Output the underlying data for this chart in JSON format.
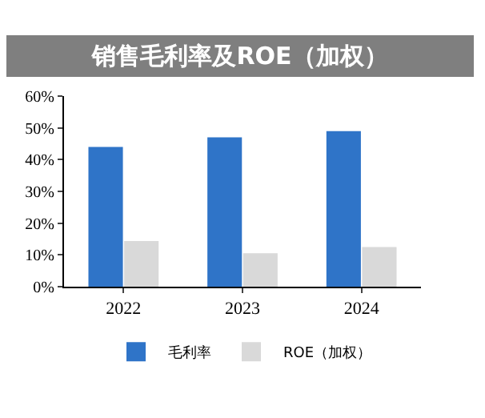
{
  "chart_data": {
    "type": "bar",
    "title": "销售毛利率及ROE（加权）",
    "categories": [
      "2022",
      "2023",
      "2024"
    ],
    "series": [
      {
        "name": "毛利率",
        "color": "#2f74c8",
        "values": [
          44,
          47,
          49
        ]
      },
      {
        "name": "ROE（加权）",
        "color": "#d9d9d9",
        "values": [
          14.4,
          10.5,
          12.5
        ]
      }
    ],
    "ylim": [
      0,
      60
    ],
    "yticks": [
      {
        "value": 0,
        "label": "0%"
      },
      {
        "value": 10,
        "label": "10%"
      },
      {
        "value": 20,
        "label": "20%"
      },
      {
        "value": 30,
        "label": "30%"
      },
      {
        "value": 40,
        "label": "40%"
      },
      {
        "value": 50,
        "label": "50%"
      },
      {
        "value": 60,
        "label": "60%"
      }
    ],
    "grid": false,
    "legend": "bottom"
  }
}
